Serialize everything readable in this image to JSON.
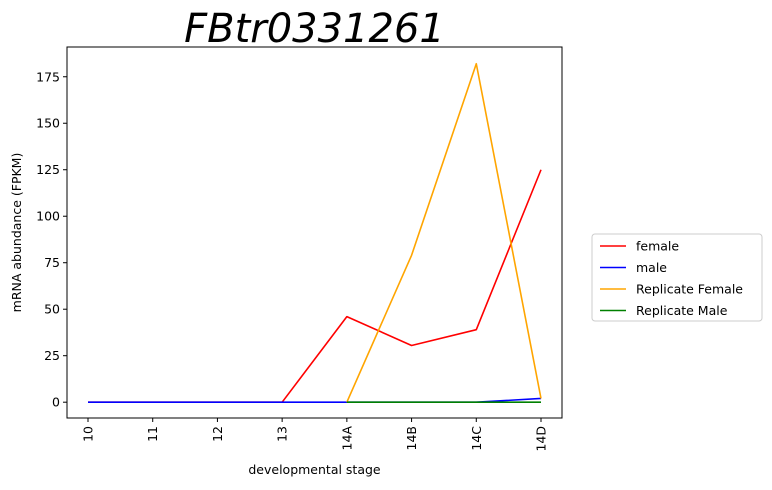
{
  "chart_data": {
    "type": "line",
    "title": "FBtr0331261",
    "xlabel": "developmental stage",
    "ylabel": "mRNA abundance (FPKM)",
    "categories": [
      "10",
      "11",
      "12",
      "13",
      "14A",
      "14B",
      "14C",
      "14D"
    ],
    "ylim": [
      -8.5,
      191
    ],
    "yticks": [
      0,
      25,
      50,
      75,
      100,
      125,
      150,
      175
    ],
    "grid": false,
    "legend_position": "right",
    "series": [
      {
        "name": "female",
        "color": "#ff0000",
        "values": [
          0,
          0,
          0,
          0,
          46,
          30.5,
          39,
          125
        ]
      },
      {
        "name": "male",
        "color": "#0000ff",
        "values": [
          0,
          0,
          0,
          0,
          0,
          0,
          0,
          2
        ]
      },
      {
        "name": "Replicate Female",
        "color": "#ffa500",
        "values": [
          null,
          null,
          null,
          null,
          0,
          79,
          182,
          2
        ]
      },
      {
        "name": "Replicate Male",
        "color": "#008000",
        "values": [
          null,
          null,
          null,
          null,
          0,
          0,
          0,
          0
        ]
      }
    ]
  }
}
